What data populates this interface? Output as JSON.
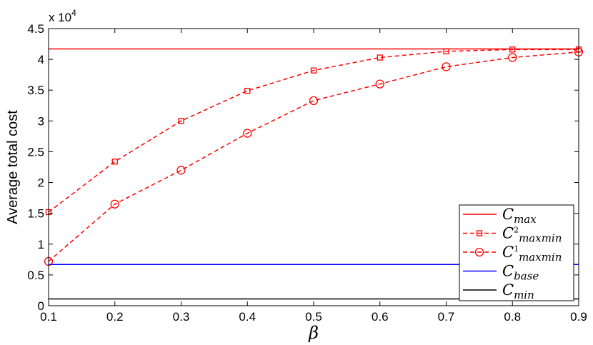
{
  "chart_data": {
    "type": "line",
    "title": "",
    "xlabel": "β",
    "ylabel": "Average total cost",
    "y_multiplier_label": "x 10",
    "y_multiplier_exp": "4",
    "xlim": [
      0.1,
      0.9
    ],
    "ylim": [
      0,
      4.5
    ],
    "x_ticks": [
      0.1,
      0.2,
      0.3,
      0.4,
      0.5,
      0.6,
      0.7,
      0.8,
      0.9
    ],
    "x_tick_labels": [
      "0.1",
      "0.2",
      "0.3",
      "0.4",
      "0.5",
      "0.6",
      "0.7",
      "0.8",
      "0.9"
    ],
    "y_ticks": [
      0,
      0.5,
      1,
      1.5,
      2,
      2.5,
      3,
      3.5,
      4,
      4.5
    ],
    "y_tick_labels": [
      "0",
      "0.5",
      "1",
      "1.5",
      "2",
      "2.5",
      "3",
      "3.5",
      "4",
      "4.5"
    ],
    "grid": false,
    "legend_position": "bottom-right",
    "x": [
      0.1,
      0.2,
      0.3,
      0.4,
      0.5,
      0.6,
      0.7,
      0.8,
      0.9
    ],
    "series": [
      {
        "name": "C_max",
        "legend_main": "C",
        "legend_sup": "",
        "legend_sub": "max",
        "style": "solid",
        "marker": "none",
        "color": "#ff0000",
        "values": [
          4.17,
          4.17,
          4.17,
          4.17,
          4.17,
          4.17,
          4.17,
          4.17,
          4.17
        ]
      },
      {
        "name": "C2_maxmin",
        "legend_main": "C",
        "legend_sup": "2",
        "legend_sub": "maxmin",
        "style": "dashed",
        "marker": "square",
        "color": "#ff0000",
        "values": [
          1.52,
          2.34,
          3.0,
          3.49,
          3.82,
          4.03,
          4.13,
          4.16,
          4.16
        ]
      },
      {
        "name": "C1_maxmin",
        "legend_main": "C",
        "legend_sup": "1",
        "legend_sub": "maxmin",
        "style": "dashed",
        "marker": "circle",
        "color": "#ff0000",
        "values": [
          0.72,
          1.65,
          2.2,
          2.8,
          3.33,
          3.6,
          3.88,
          4.03,
          4.12
        ]
      },
      {
        "name": "C_base",
        "legend_main": "C",
        "legend_sup": "",
        "legend_sub": "base",
        "style": "solid",
        "marker": "none",
        "color": "#0000ff",
        "values": [
          0.67,
          0.67,
          0.67,
          0.67,
          0.67,
          0.67,
          0.67,
          0.67,
          0.67
        ]
      },
      {
        "name": "C_min",
        "legend_main": "C",
        "legend_sup": "",
        "legend_sub": "min",
        "style": "solid",
        "marker": "none",
        "color": "#000000",
        "values": [
          0.11,
          0.11,
          0.11,
          0.11,
          0.11,
          0.11,
          0.11,
          0.11,
          0.11
        ]
      }
    ]
  }
}
